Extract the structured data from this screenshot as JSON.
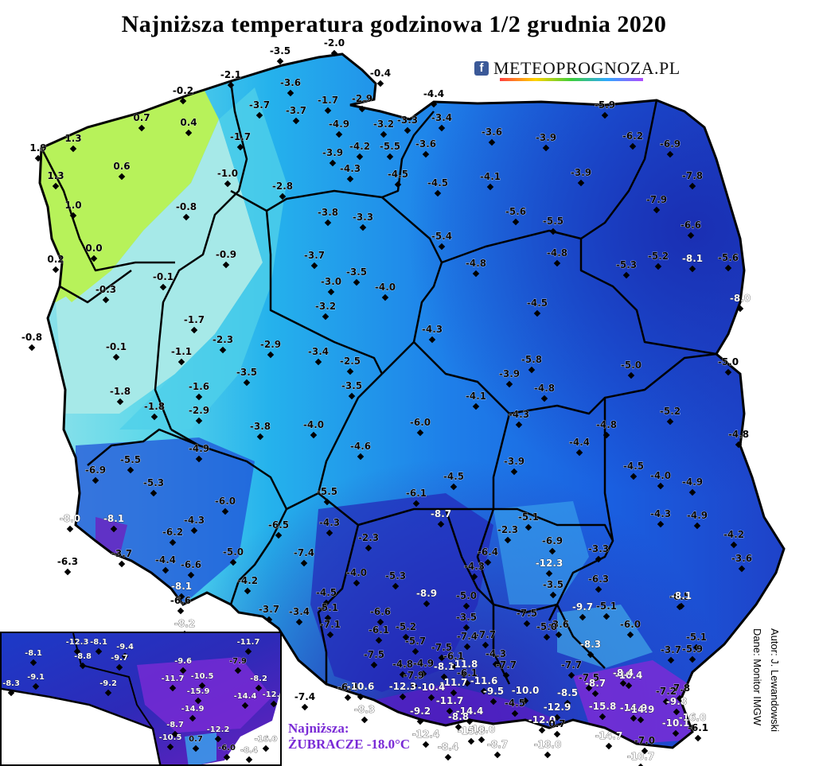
{
  "title": "Najniższa temperatura godzinowa 1/2 grudnia 2020",
  "brand": {
    "facebook_glyph": "f",
    "name": "METEOPROGNOZA.PL"
  },
  "credit": {
    "author": "Autor: J. Lewandowski",
    "data": "Dane: Monitor IMGW"
  },
  "minimum": {
    "label": "Najniższa:",
    "value": "ŻUBRACZE -18.0°C"
  },
  "colors": {
    "warm": "#b7f25a",
    "mild": "#a6e9e8",
    "cool": "#27b4e6",
    "cold": "#1d63e3",
    "very_cold": "#1a2fb3",
    "extreme": "#7a2bd6"
  },
  "stations": [
    {
      "t": "-3.5"
    },
    {
      "t": "-2.0"
    },
    {
      "t": "-0.4"
    },
    {
      "t": "-2.1"
    },
    {
      "t": "-3.6"
    },
    {
      "t": "-0.2"
    },
    {
      "t": "-3.7"
    },
    {
      "t": "-3.7"
    },
    {
      "t": "-1.7"
    },
    {
      "t": "-2.9"
    },
    {
      "t": "-4.4"
    },
    {
      "t": "0.7"
    },
    {
      "t": "0.4"
    },
    {
      "t": "-5.9"
    },
    {
      "t": "1.3"
    },
    {
      "t": "1.9"
    },
    {
      "t": "-4.9"
    },
    {
      "t": "-3.2"
    },
    {
      "t": "-3.3"
    },
    {
      "t": "-3.4"
    },
    {
      "t": "-1.7"
    },
    {
      "t": "-4.2"
    },
    {
      "t": "-5.5"
    },
    {
      "t": "-3.6"
    },
    {
      "t": "-3.6"
    },
    {
      "t": "-3.9"
    },
    {
      "t": "-6.2"
    },
    {
      "t": "-6.9"
    },
    {
      "t": "-3.9"
    },
    {
      "t": "0.6"
    },
    {
      "t": "-4.3"
    },
    {
      "t": "1.3"
    },
    {
      "t": "-1.0"
    },
    {
      "t": "-4.5"
    },
    {
      "t": "-4.5"
    },
    {
      "t": "-4.1"
    },
    {
      "t": "-3.9"
    },
    {
      "t": "-7.8"
    },
    {
      "t": "-2.8"
    },
    {
      "t": "1.0"
    },
    {
      "t": "-0.8"
    },
    {
      "t": "-3.8"
    },
    {
      "t": "-3.3"
    },
    {
      "t": "-5.6"
    },
    {
      "t": "-7.9"
    },
    {
      "t": "-5.5"
    },
    {
      "t": "-6.6"
    },
    {
      "t": "0.0"
    },
    {
      "t": "-5.4"
    },
    {
      "t": "-3.7"
    },
    {
      "t": "-0.9"
    },
    {
      "t": "0.2"
    },
    {
      "t": "-4.8"
    },
    {
      "t": "-4.8"
    },
    {
      "t": "-5.3"
    },
    {
      "t": "-5.2"
    },
    {
      "t": "-8.1"
    },
    {
      "t": "-5.6"
    },
    {
      "t": "-3.5"
    },
    {
      "t": "-3.0"
    },
    {
      "t": "-0.1"
    },
    {
      "t": "-4.0"
    },
    {
      "t": "-0.3"
    },
    {
      "t": "-4.5"
    },
    {
      "t": "-8.0"
    },
    {
      "t": "-3.2"
    },
    {
      "t": "-1.7"
    },
    {
      "t": "-0.8"
    },
    {
      "t": "-4.3"
    },
    {
      "t": "-2.3"
    },
    {
      "t": "-2.9"
    },
    {
      "t": "-0.1"
    },
    {
      "t": "-1.1"
    },
    {
      "t": "-3.4"
    },
    {
      "t": "-2.5"
    },
    {
      "t": "-5.8"
    },
    {
      "t": "-5.0"
    },
    {
      "t": "-5.0"
    },
    {
      "t": "-3.5"
    },
    {
      "t": "-3.9"
    },
    {
      "t": "-3.5"
    },
    {
      "t": "-1.6"
    },
    {
      "t": "-4.8"
    },
    {
      "t": "-1.8"
    },
    {
      "t": "-4.1"
    },
    {
      "t": "-1.8"
    },
    {
      "t": "-2.9"
    },
    {
      "t": "-5.2"
    },
    {
      "t": "-4.3"
    },
    {
      "t": "-6.0"
    },
    {
      "t": "-3.8"
    },
    {
      "t": "-4.0"
    },
    {
      "t": "-4.8"
    },
    {
      "t": "-4.8"
    },
    {
      "t": "-4.4"
    },
    {
      "t": "-4.9"
    },
    {
      "t": "-4.6"
    },
    {
      "t": "-5.5"
    },
    {
      "t": "-3.9"
    },
    {
      "t": "-6.9"
    },
    {
      "t": "-4.5"
    },
    {
      "t": "-4.5"
    },
    {
      "t": "-4.0"
    },
    {
      "t": "-4.9"
    },
    {
      "t": "-5.3"
    },
    {
      "t": "-5.5"
    },
    {
      "t": "-6.0"
    },
    {
      "t": "-6.1"
    },
    {
      "t": "-4.3"
    },
    {
      "t": "-8.7"
    },
    {
      "t": "-4.9"
    },
    {
      "t": "-4.3"
    },
    {
      "t": "-8.0"
    },
    {
      "t": "-8.1"
    },
    {
      "t": "-4.3"
    },
    {
      "t": "-6.5"
    },
    {
      "t": "-5.1"
    },
    {
      "t": "-2.3"
    },
    {
      "t": "-2.3"
    },
    {
      "t": "-6.9"
    },
    {
      "t": "-4.2"
    },
    {
      "t": "-6.2"
    },
    {
      "t": "-5.0"
    },
    {
      "t": "-7.4"
    },
    {
      "t": "-6.4"
    },
    {
      "t": "-3.3"
    },
    {
      "t": "-6.3"
    },
    {
      "t": "-3.7"
    },
    {
      "t": "-4.4"
    },
    {
      "t": "-12.3"
    },
    {
      "t": "-3.6"
    },
    {
      "t": "-6.6"
    },
    {
      "t": "-4.0"
    },
    {
      "t": "-5.3"
    },
    {
      "t": "-4.3"
    },
    {
      "t": "-6.3"
    },
    {
      "t": "-8.1"
    },
    {
      "t": "-3.5"
    },
    {
      "t": "-4.2"
    },
    {
      "t": "-6.5"
    },
    {
      "t": "-6.6"
    },
    {
      "t": "-4.5"
    },
    {
      "t": "-8.9"
    },
    {
      "t": "-5.0"
    },
    {
      "t": "-8.1"
    },
    {
      "t": "-8.2"
    },
    {
      "t": "-5.1"
    },
    {
      "t": "-6.6"
    },
    {
      "t": "-9.7"
    },
    {
      "t": "-5.1"
    },
    {
      "t": "-7.5"
    },
    {
      "t": "-3.5"
    },
    {
      "t": "-3.7"
    },
    {
      "t": "-3.4"
    },
    {
      "t": "-7.1"
    },
    {
      "t": "-6.0"
    },
    {
      "t": "-5.2"
    },
    {
      "t": "-3.6"
    },
    {
      "t": "-5.1"
    },
    {
      "t": "-7.7"
    },
    {
      "t": "-6.1"
    },
    {
      "t": "-7.4"
    },
    {
      "t": "-5.0"
    },
    {
      "t": "-3.7"
    },
    {
      "t": "-5.7"
    },
    {
      "t": "-7.5"
    },
    {
      "t": "-8.3"
    },
    {
      "t": "-5.9"
    },
    {
      "t": "-6.1"
    },
    {
      "t": "-7.5"
    },
    {
      "t": "-4.3"
    },
    {
      "t": "-4.8"
    },
    {
      "t": "-4.9"
    },
    {
      "t": "-8.1"
    },
    {
      "t": "-11.8"
    },
    {
      "t": "-7.7"
    },
    {
      "t": "-7.7"
    },
    {
      "t": "-10.4"
    },
    {
      "t": "-6.1"
    },
    {
      "t": "-8.4"
    },
    {
      "t": "-7.5"
    },
    {
      "t": "-7.9"
    },
    {
      "t": "-6.4"
    },
    {
      "t": "-10.6"
    },
    {
      "t": "-7.8"
    },
    {
      "t": "-12.3"
    },
    {
      "t": "-10.4"
    },
    {
      "t": "-11.7"
    },
    {
      "t": "-11.6"
    },
    {
      "t": "-8.7"
    },
    {
      "t": "-7.2"
    },
    {
      "t": "-7.4"
    },
    {
      "t": "-9.5"
    },
    {
      "t": "-10.0"
    },
    {
      "t": "-8.5"
    },
    {
      "t": "-12.9"
    },
    {
      "t": "-9.8"
    },
    {
      "t": "-8.3"
    },
    {
      "t": "-9.2"
    },
    {
      "t": "-11.7"
    },
    {
      "t": "-4.5"
    },
    {
      "t": "-15.8"
    },
    {
      "t": "-14.9"
    },
    {
      "t": "-16.0"
    },
    {
      "t": "-14.9"
    },
    {
      "t": "-14.4"
    },
    {
      "t": "-8.8"
    },
    {
      "t": "-10.0"
    },
    {
      "t": "-12.0"
    },
    {
      "t": "0.7"
    },
    {
      "t": "-10.1"
    },
    {
      "t": "-12.4"
    },
    {
      "t": "-15.8"
    },
    {
      "t": "-6.1"
    },
    {
      "t": "-8.4"
    },
    {
      "t": "-8.7"
    },
    {
      "t": "-18.0"
    },
    {
      "t": "-14.7"
    },
    {
      "t": "-7.0"
    },
    {
      "t": "-10.7"
    }
  ],
  "inset_stations": [
    {
      "t": "-12.3"
    },
    {
      "t": "-8.1"
    },
    {
      "t": "-9.4"
    },
    {
      "t": "-11.7"
    },
    {
      "t": "-8.1"
    },
    {
      "t": "-8.8"
    },
    {
      "t": "-9.7"
    },
    {
      "t": "-9.6"
    },
    {
      "t": "-7.9"
    },
    {
      "t": "-9.1"
    },
    {
      "t": "-11.7"
    },
    {
      "t": "-10.5"
    },
    {
      "t": "-8.2"
    },
    {
      "t": "-8.3"
    },
    {
      "t": "-9.2"
    },
    {
      "t": "-15.9"
    },
    {
      "t": "-14.4"
    },
    {
      "t": "-12.3"
    },
    {
      "t": "-14.9"
    },
    {
      "t": "-8.7"
    },
    {
      "t": "-12.2"
    },
    {
      "t": "-16.0"
    },
    {
      "t": "-10.5"
    },
    {
      "t": "0.7"
    },
    {
      "t": "-6.0"
    },
    {
      "t": "-8.4"
    }
  ]
}
